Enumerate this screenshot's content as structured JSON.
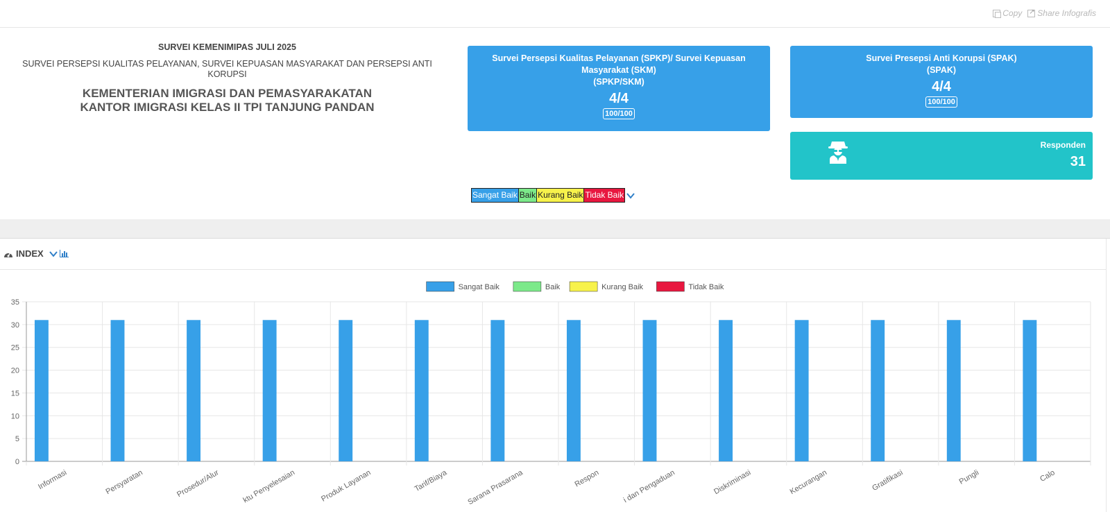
{
  "topbar": {
    "copy_label": "Copy",
    "share_label": "Share Infografis"
  },
  "header": {
    "survey_period": "SURVEI KEMENIMIPAS JULI 2025",
    "survey_title": "SURVEI PERSEPSI KUALITAS PELAYANAN, SURVEI KEPUASAN MASYARAKAT DAN PERSEPSI ANTI KORUPSI",
    "ministry": "KEMENTERIAN IMIGRASI DAN PEMASYARAKATAN",
    "office": "KANTOR IMIGRASI KELAS II TPI TANJUNG PANDAN"
  },
  "cards": {
    "spkp": {
      "title_line1": "Survei Persepsi Kualitas Pelayanan (SPKP)/ Survei Kepuasan",
      "title_line2": "Masyarakat (SKM)",
      "subtitle": "(SPKP/SKM)",
      "score": "4/4",
      "index": "100/100"
    },
    "spak": {
      "title": "Survei Presepsi Anti Korupsi (SPAK)",
      "subtitle": "(SPAK)",
      "score": "4/4",
      "index": "100/100"
    },
    "responden": {
      "label": "Responden",
      "value": "31",
      "icon": "user-secret-icon"
    }
  },
  "rating_legend": {
    "sangat_baik": "Sangat Baik",
    "baik": "Baik",
    "kurang_baik": "Kurang Baik",
    "tidak_baik": "Tidak Baik"
  },
  "index_panel": {
    "title": "INDEX"
  },
  "colors": {
    "sangat_baik": "#37a0e8",
    "baik": "#7ce98a",
    "kurang_baik": "#f7f24b",
    "tidak_baik": "#e8173f",
    "responden_card": "#22c4c9"
  },
  "chart_data": {
    "type": "bar",
    "categories": [
      "Informasi",
      "Persyaratan",
      "Prosedur/Alur",
      "ktu Penyelesaian",
      "Produk Layanan",
      "Tarif/Biaya",
      "Sarana Prasarana",
      "Respon",
      "i dan Pengaduan",
      "Diskriminasi",
      "Kecurangan",
      "Gratifikasi",
      "Pungli",
      "Calo"
    ],
    "series": [
      {
        "name": "Sangat Baik",
        "color": "#37a0e8",
        "values": [
          31,
          31,
          31,
          31,
          31,
          31,
          31,
          31,
          31,
          31,
          31,
          31,
          31,
          31
        ]
      },
      {
        "name": "Baik",
        "color": "#7ce98a",
        "values": [
          0,
          0,
          0,
          0,
          0,
          0,
          0,
          0,
          0,
          0,
          0,
          0,
          0,
          0
        ]
      },
      {
        "name": "Kurang Baik",
        "color": "#f7f24b",
        "values": [
          0,
          0,
          0,
          0,
          0,
          0,
          0,
          0,
          0,
          0,
          0,
          0,
          0,
          0
        ]
      },
      {
        "name": "Tidak Baik",
        "color": "#e8173f",
        "values": [
          0,
          0,
          0,
          0,
          0,
          0,
          0,
          0,
          0,
          0,
          0,
          0,
          0,
          0
        ]
      }
    ],
    "ylim": [
      0,
      35
    ],
    "yticks": [
      0,
      5,
      10,
      15,
      20,
      25,
      30,
      35
    ],
    "grid": true,
    "legend": "top-center"
  }
}
